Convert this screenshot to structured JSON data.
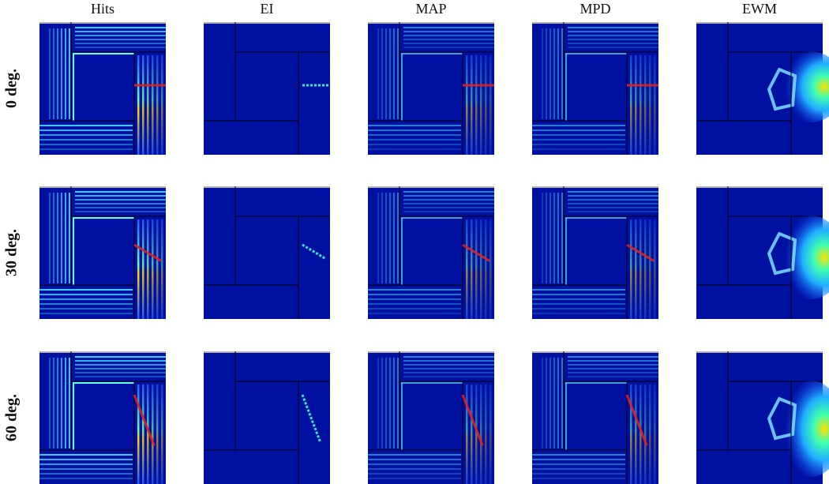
{
  "columns": [
    "Hits",
    "EI",
    "MAP",
    "MPD",
    "EWM"
  ],
  "rows": [
    "0 deg.",
    "30 deg.",
    "60 deg."
  ]
}
